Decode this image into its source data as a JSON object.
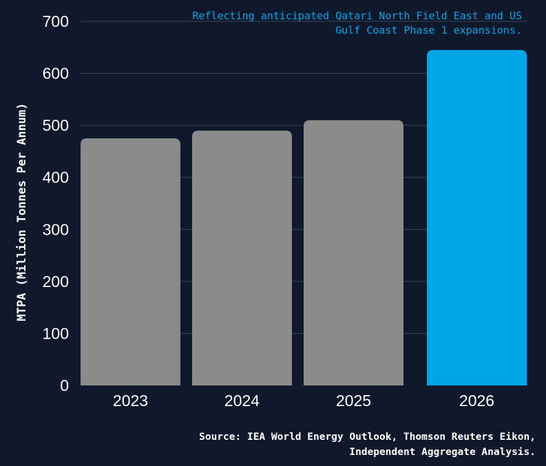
{
  "chart_data": {
    "type": "bar",
    "categories": [
      "2023",
      "2024",
      "2025",
      "2026"
    ],
    "values": [
      475,
      490,
      510,
      645
    ],
    "bar_colors": [
      "#8a8b8a",
      "#8a8b8a",
      "#8a8b8a",
      "#00a6e6"
    ],
    "ylabel": "MTPA (Million Tonnes Per Annum)",
    "xlabel": "",
    "ylim": [
      0,
      700
    ],
    "yticks": [
      "0",
      "100",
      "200",
      "300",
      "400",
      "500",
      "600",
      "700"
    ],
    "grid": true,
    "annotation": {
      "line1": "Reflecting anticipated Qatari North Field East and US",
      "line2": "Gulf Coast Phase 1 expansions."
    },
    "source": {
      "line1": "Source: IEA World Energy Outlook, Thomson Reuters Eikon,",
      "line2": "Independent Aggregate Analysis."
    }
  },
  "colors": {
    "background": "#0f192b",
    "grid": "#3a4558",
    "highlight": "#00a6e6",
    "bar": "#8a8b8a"
  }
}
